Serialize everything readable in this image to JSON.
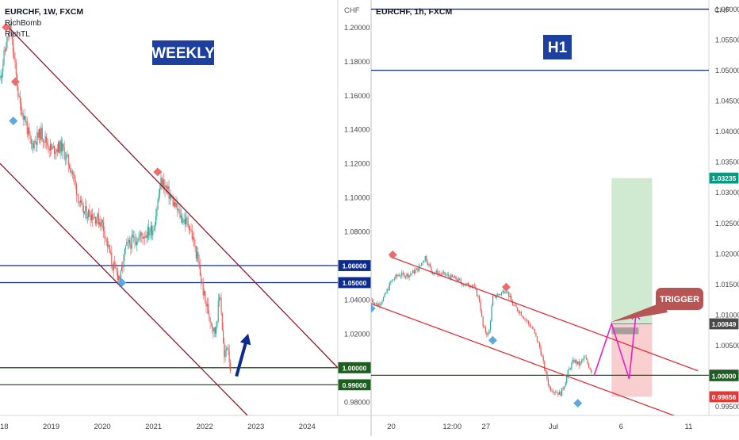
{
  "left_panel": {
    "symbol": "EURCHF, 1W, FXCM",
    "indicators": [
      "RichBomb",
      "RichTL"
    ],
    "label": "WEEKLY",
    "currency": "CHF"
  },
  "right_panel": {
    "symbol": "EURCHF, 1h, FXCM",
    "label": "H1",
    "currency": "CHF",
    "trigger_label": "TRIGGER"
  },
  "chart_data": [
    {
      "type": "candlestick",
      "title": "EURCHF, 1W, FXCM",
      "ylabel": "CHF",
      "ylim": [
        0.972,
        1.216
      ],
      "y_ticks": [
        0.98,
        1.0,
        1.02,
        1.04,
        1.06,
        1.08,
        1.1,
        1.12,
        1.14,
        1.16,
        1.18,
        1.2
      ],
      "y_tick_labels": [
        "0.98000",
        "1.00000",
        "1.02000",
        "1.04000",
        "1.06000",
        "1.08000",
        "1.10000",
        "1.12000",
        "1.14000",
        "1.16000",
        "1.18000",
        "1.20000"
      ],
      "x_labels": [
        "2018",
        "2019",
        "2020",
        "2021",
        "2022",
        "2023",
        "2024"
      ],
      "x_label_years": [
        2018,
        2019,
        2020,
        2021,
        2022,
        2023,
        2024
      ],
      "xlim": [
        2018.0,
        2024.6
      ],
      "price_path": [
        [
          2018.0,
          1.17
        ],
        [
          2018.12,
          1.19
        ],
        [
          2018.2,
          1.2
        ],
        [
          2018.3,
          1.175
        ],
        [
          2018.38,
          1.155
        ],
        [
          2018.5,
          1.145
        ],
        [
          2018.6,
          1.13
        ],
        [
          2018.8,
          1.138
        ],
        [
          2019.0,
          1.128
        ],
        [
          2019.2,
          1.13
        ],
        [
          2019.4,
          1.116
        ],
        [
          2019.6,
          1.092
        ],
        [
          2019.8,
          1.09
        ],
        [
          2020.0,
          1.085
        ],
        [
          2020.2,
          1.06
        ],
        [
          2020.35,
          1.052
        ],
        [
          2020.45,
          1.07
        ],
        [
          2020.6,
          1.075
        ],
        [
          2020.8,
          1.078
        ],
        [
          2021.0,
          1.082
        ],
        [
          2021.15,
          1.11
        ],
        [
          2021.25,
          1.105
        ],
        [
          2021.4,
          1.096
        ],
        [
          2021.55,
          1.088
        ],
        [
          2021.7,
          1.084
        ],
        [
          2021.85,
          1.065
        ],
        [
          2022.0,
          1.04
        ],
        [
          2022.1,
          1.03
        ],
        [
          2022.2,
          1.02
        ],
        [
          2022.3,
          1.045
        ],
        [
          2022.38,
          1.005
        ],
        [
          2022.45,
          1.015
        ],
        [
          2022.5,
          1.0
        ]
      ],
      "hlines": [
        {
          "y": 1.06,
          "label": "1.06000",
          "color": "#0d2b8c"
        },
        {
          "y": 1.05,
          "label": "1.05000",
          "color": "#0d2b8c"
        },
        {
          "y": 1.00007,
          "label": "1.00007",
          "color": "#1b5e20"
        },
        {
          "y": 1.0,
          "label": "1.00000",
          "color": "#1b5e20"
        },
        {
          "y": 0.99,
          "label": "0.99000",
          "color": "#1b5e20"
        }
      ],
      "trendlines": [
        {
          "from": [
            2018.1,
            1.202
          ],
          "to": [
            2024.6,
            1.0
          ]
        },
        {
          "from": [
            2018.0,
            1.12
          ],
          "to": [
            2022.9,
            0.97
          ]
        }
      ],
      "markers": [
        {
          "x": 2018.12,
          "y": 1.2,
          "kind": "sell"
        },
        {
          "x": 2018.3,
          "y": 1.168,
          "kind": "sell"
        },
        {
          "x": 2018.26,
          "y": 1.145,
          "kind": "buy"
        },
        {
          "x": 2021.08,
          "y": 1.115,
          "kind": "sell"
        },
        {
          "x": 2020.38,
          "y": 1.05,
          "kind": "buy"
        }
      ],
      "arrow": {
        "from": [
          2022.62,
          0.995
        ],
        "to": [
          2022.85,
          1.02
        ]
      }
    },
    {
      "type": "candlestick",
      "title": "EURCHF, 1h, FXCM",
      "ylabel": "CHF",
      "ylim": [
        0.9935,
        1.0615
      ],
      "y_ticks": [
        0.995,
        1.0,
        1.005,
        1.01,
        1.015,
        1.02,
        1.025,
        1.03,
        1.035,
        1.04,
        1.045,
        1.05,
        1.055,
        1.06
      ],
      "y_tick_labels": [
        "0.99500",
        "1.00000",
        "1.00500",
        "1.01000",
        "1.01500",
        "1.02000",
        "1.02500",
        "1.03000",
        "1.03500",
        "1.04000",
        "1.04500",
        "1.05000",
        "1.05500",
        "1.06000"
      ],
      "x_labels": [
        "20",
        "12:00",
        "27",
        "Jul",
        "6",
        "11"
      ],
      "x_label_pos": [
        1.5,
        6.0,
        8.5,
        13.5,
        18.5,
        23.5
      ],
      "xlim": [
        0.0,
        25.0
      ],
      "price_path": [
        [
          0.0,
          1.0125
        ],
        [
          0.5,
          1.0115
        ],
        [
          1.0,
          1.013
        ],
        [
          1.5,
          1.0155
        ],
        [
          2.0,
          1.0165
        ],
        [
          2.8,
          1.0165
        ],
        [
          3.5,
          1.0175
        ],
        [
          4.0,
          1.0195
        ],
        [
          4.5,
          1.017
        ],
        [
          5.5,
          1.0165
        ],
        [
          6.3,
          1.0158
        ],
        [
          7.0,
          1.0148
        ],
        [
          7.5,
          1.015
        ],
        [
          8.0,
          1.0125
        ],
        [
          8.3,
          1.0078
        ],
        [
          8.7,
          1.0065
        ],
        [
          9.0,
          1.0128
        ],
        [
          9.6,
          1.0135
        ],
        [
          10.0,
          1.0142
        ],
        [
          10.5,
          1.0115
        ],
        [
          11.0,
          1.0105
        ],
        [
          11.5,
          1.009
        ],
        [
          12.0,
          1.0075
        ],
        [
          12.5,
          1.0045
        ],
        [
          12.8,
          1.0015
        ],
        [
          13.2,
          0.998
        ],
        [
          13.6,
          0.9975
        ],
        [
          14.0,
          0.997
        ],
        [
          14.3,
          0.9985
        ],
        [
          14.6,
          1.0008
        ],
        [
          15.0,
          1.0025
        ],
        [
          15.4,
          1.0018
        ],
        [
          15.8,
          1.003
        ],
        [
          16.3,
          1.0008
        ]
      ],
      "hlines": [
        {
          "y": 1.06,
          "label": "1.06000",
          "color": "#0d2b8c"
        },
        {
          "y": 1.05,
          "label": "1.05000",
          "color": "#0d2b8c"
        },
        {
          "y": 1.00007,
          "label": "1.00007",
          "color": "#1b5e20"
        }
      ],
      "trendlines": [
        {
          "from": [
            1.4,
            1.0195
          ],
          "to": [
            24.2,
            1.0008
          ]
        },
        {
          "from": [
            0.0,
            1.0118
          ],
          "to": [
            23.0,
            0.993
          ]
        }
      ],
      "markers": [
        {
          "x": 1.6,
          "y": 1.0198,
          "kind": "sell"
        },
        {
          "x": 10.0,
          "y": 1.0145,
          "kind": "sell"
        },
        {
          "x": 0.0,
          "y": 1.011,
          "kind": "buy"
        },
        {
          "x": 9.0,
          "y": 1.0058,
          "kind": "buy"
        },
        {
          "x": 15.3,
          "y": 0.9955,
          "kind": "buy"
        }
      ],
      "projection": [
        [
          16.5,
          1.0
        ],
        [
          17.8,
          1.0085
        ],
        [
          19.1,
          0.9995
        ],
        [
          19.6,
          1.01
        ]
      ],
      "trade_box": {
        "x_start": 17.8,
        "x_end": 20.8,
        "entry": 1.00849,
        "target": 1.03235,
        "stop": 0.99656
      },
      "trigger_zone": {
        "x_start": 17.8,
        "x_end": 19.8,
        "y_low": 1.0068,
        "y_high": 1.0079
      },
      "price_tags": [
        {
          "y": 1.03235,
          "label": "1.03235",
          "color": "#089981"
        },
        {
          "y": 1.00849,
          "label": "1.00849",
          "color": "#4a4a4a"
        },
        {
          "y": 1.00007,
          "label": "1.00007",
          "color": "#ffffff",
          "text": "#000000"
        },
        {
          "y": 1.0,
          "label": "1.00000",
          "color": "#1b5e20"
        },
        {
          "y": 0.99656,
          "label": "0.99656",
          "color": "#e53935"
        }
      ]
    }
  ]
}
